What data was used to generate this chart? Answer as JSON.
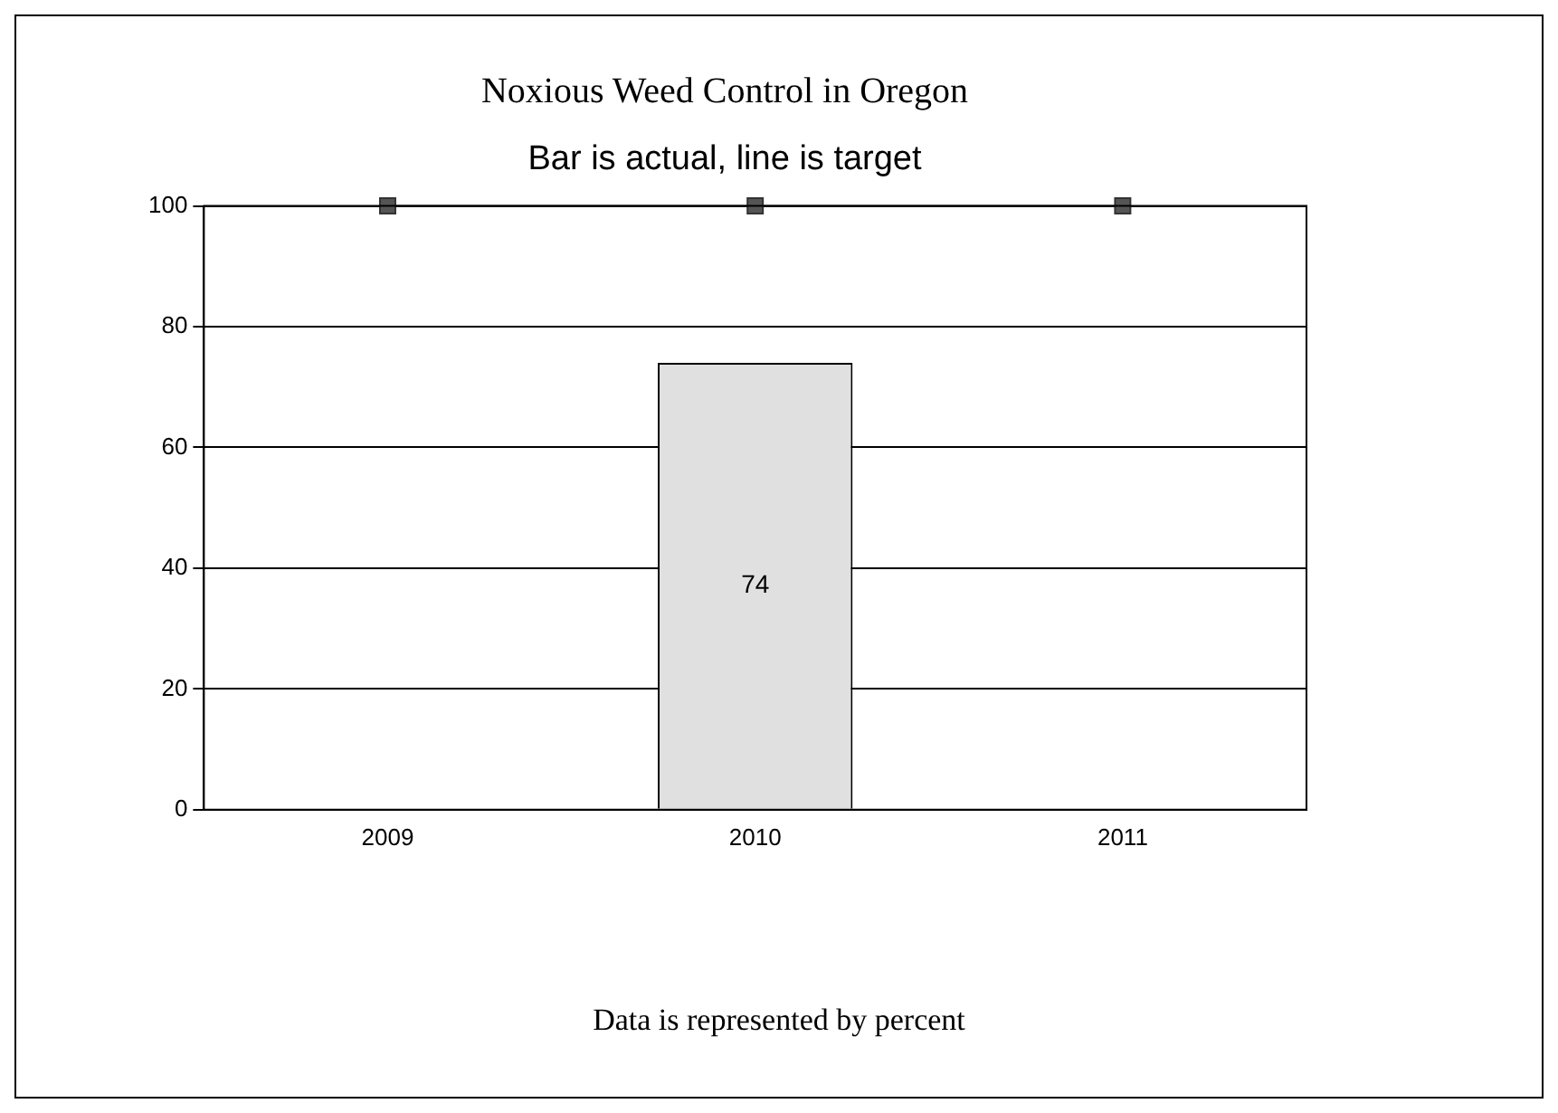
{
  "chart_data": {
    "type": "bar",
    "title": "Noxious Weed Control in Oregon",
    "subtitle": "Bar is actual, line is target",
    "categories": [
      "2009",
      "2010",
      "2011"
    ],
    "series": [
      {
        "color": "#e0e0e0",
        "values": [
          null,
          74,
          null
        ],
        "value_labels": [
          null,
          "74",
          null
        ]
      },
      {
        "type": "line",
        "color": "#555555",
        "values": [
          100,
          100,
          100
        ],
        "marker": "square"
      }
    ],
    "ylim": [
      0,
      100
    ],
    "yticks": [
      0,
      20,
      40,
      60,
      80,
      100
    ],
    "grid": "y",
    "legend": false,
    "annotations": [
      "Data is represented by percent"
    ]
  }
}
